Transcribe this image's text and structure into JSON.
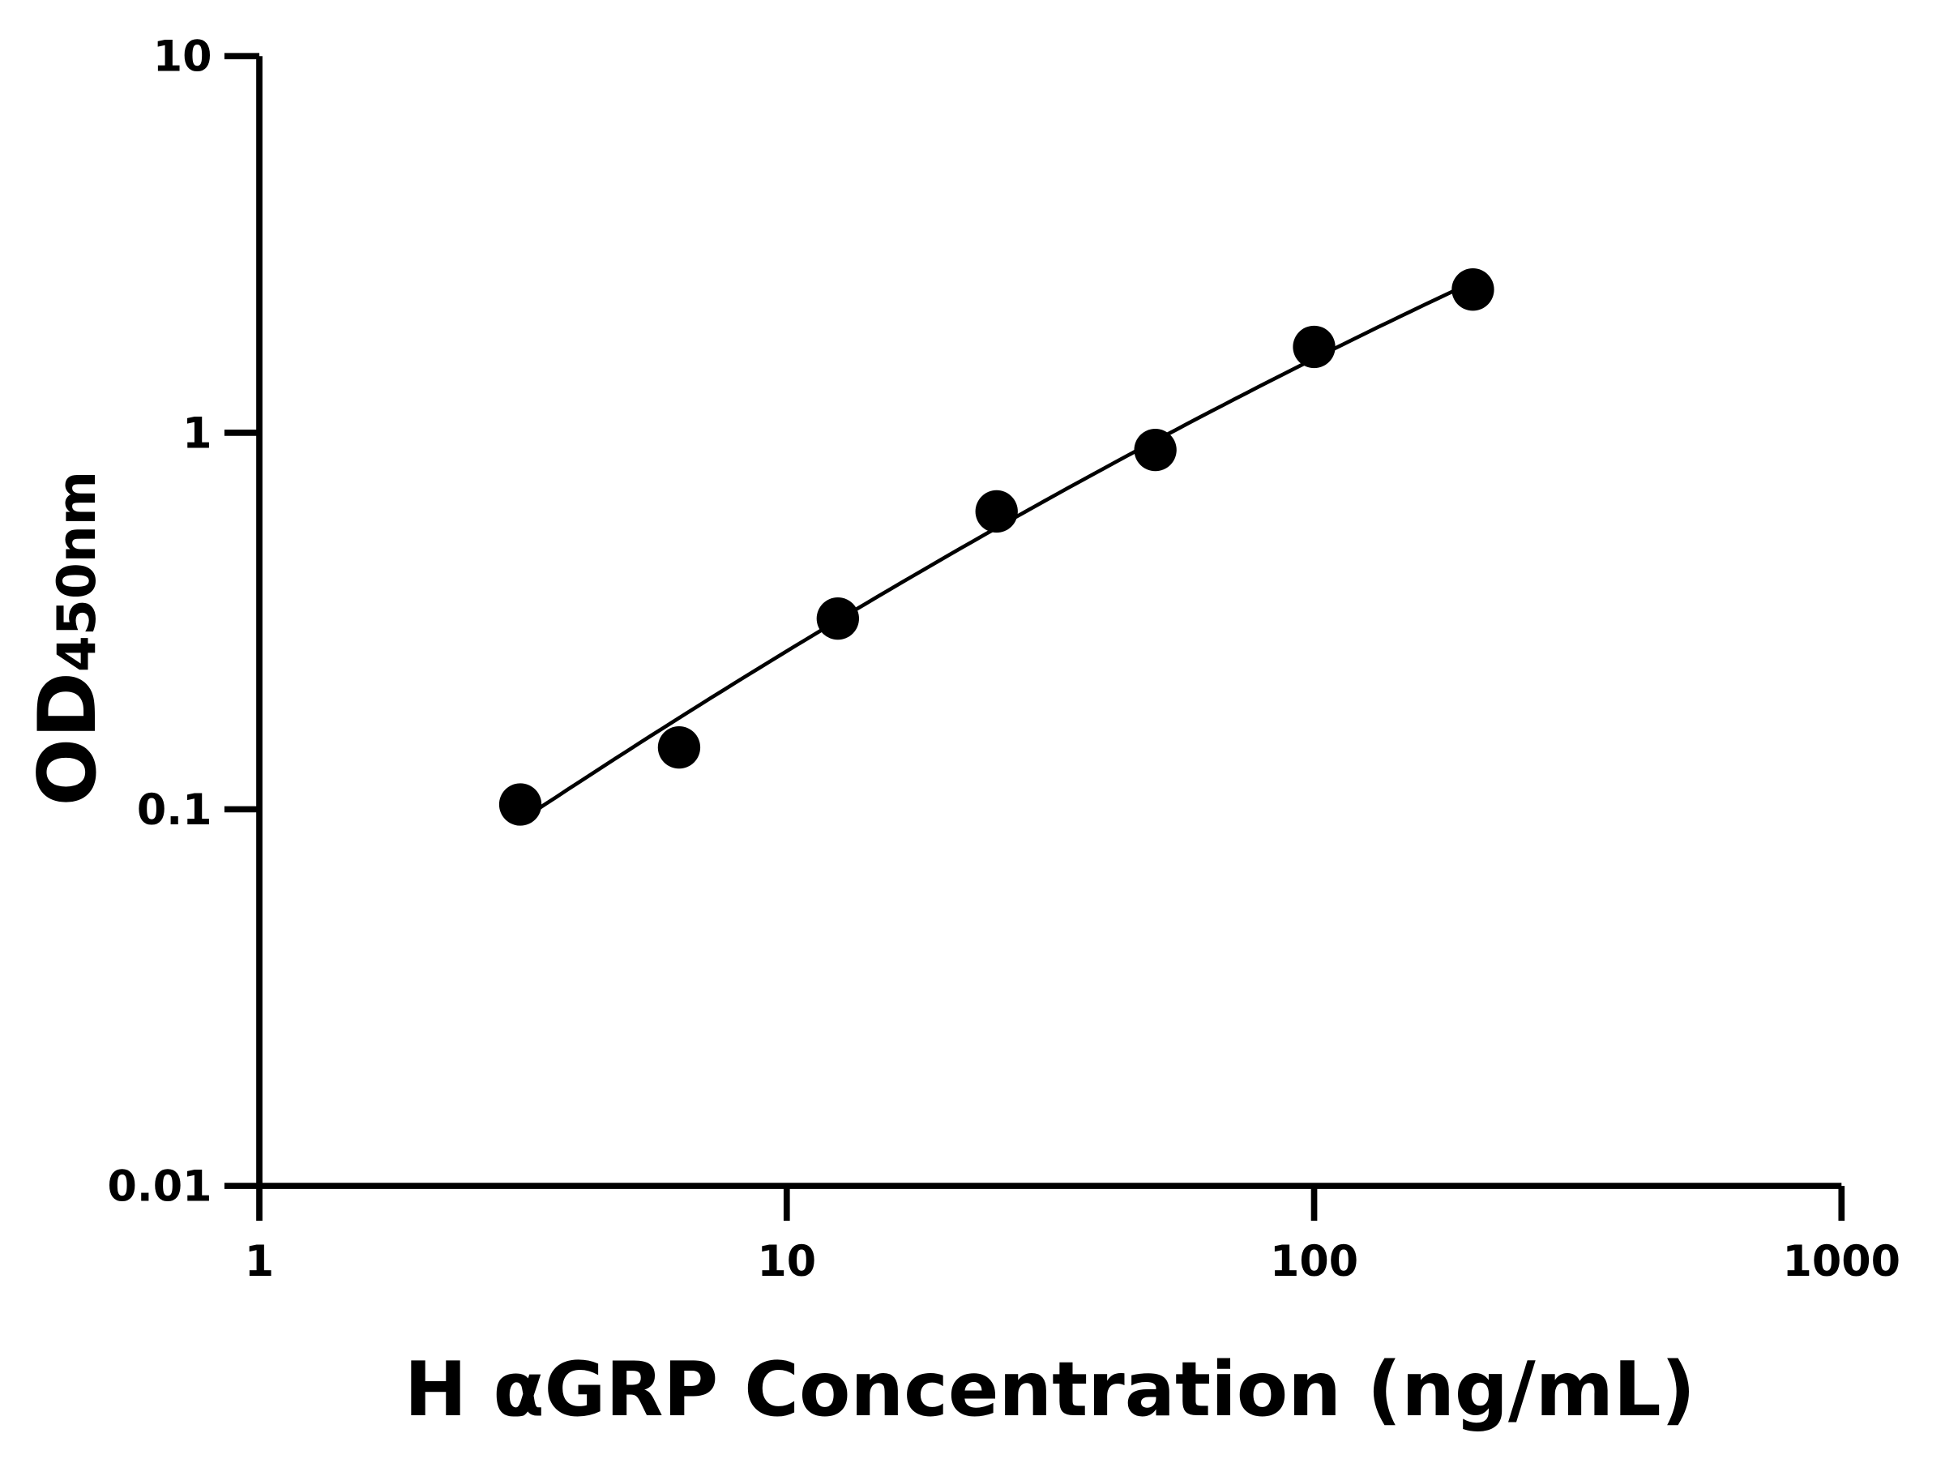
{
  "chart_data": {
    "type": "scatter",
    "xlabel": "H αGRP Concentration (ng/mL)",
    "ylabel_main": "OD",
    "ylabel_sub": "450nm",
    "xscale": "log",
    "yscale": "log",
    "xlim": [
      1,
      1000
    ],
    "ylim": [
      0.01,
      10
    ],
    "x_ticks": [
      "1",
      "10",
      "100",
      "1000"
    ],
    "y_ticks": [
      "0.01",
      "0.1",
      "1",
      "10"
    ],
    "grid": false,
    "fit_curve": true,
    "series": [
      {
        "x": [
          3.125,
          6.25,
          12.5,
          25,
          50,
          100,
          200
        ],
        "y": [
          0.103,
          0.146,
          0.321,
          0.618,
          0.9,
          1.69,
          2.4
        ]
      }
    ],
    "color": "#000000"
  }
}
